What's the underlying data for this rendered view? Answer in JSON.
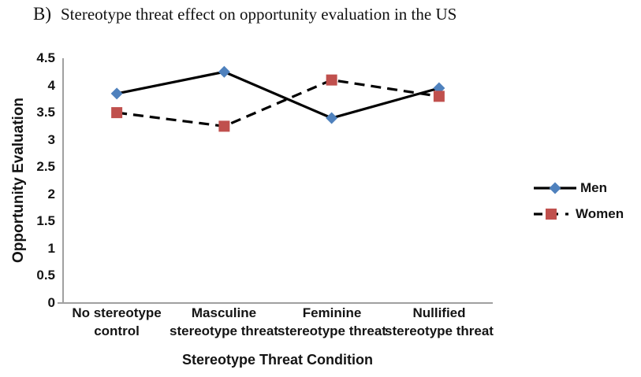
{
  "figure": {
    "panel_label": "B)",
    "title": "Stereotype threat effect on opportunity evaluation in the US"
  },
  "chart_data": {
    "type": "line",
    "title": "B) Stereotype threat effect on opportunity evaluation in the US",
    "xlabel": "Stereotype Threat Condition",
    "ylabel": "Opportunity Evaluation",
    "categories": [
      "No stereotype control",
      "Masculine stereotype threat",
      "Feminine stereotype threat",
      "Nullified stereotype threat"
    ],
    "category_labels_two_line": [
      [
        "No stereotype",
        "control"
      ],
      [
        "Masculine",
        "stereotype threat"
      ],
      [
        "Feminine",
        "stereotype threat"
      ],
      [
        "Nullified",
        "stereotype threat"
      ]
    ],
    "series": [
      {
        "name": "Men",
        "values": [
          3.85,
          4.25,
          3.4,
          3.95
        ],
        "line_style": "solid",
        "line_color": "#000000",
        "marker": "diamond",
        "marker_color": "#4f81bd"
      },
      {
        "name": "Women",
        "values": [
          3.5,
          3.25,
          4.1,
          3.8
        ],
        "line_style": "dashed",
        "line_color": "#000000",
        "marker": "square",
        "marker_color": "#c0504d"
      }
    ],
    "ylim": [
      0,
      4.5
    ],
    "yticks": [
      "4.5",
      "4",
      "3.5",
      "3",
      "2.5",
      "2",
      "1.5",
      "1",
      "0.5",
      "0"
    ],
    "ytick_values": [
      4.5,
      4,
      3.5,
      3,
      2.5,
      2,
      1.5,
      1,
      0.5,
      0
    ],
    "grid": false,
    "legend_position": "right",
    "axis_color": "#a0a0a0",
    "background": "#ffffff"
  }
}
